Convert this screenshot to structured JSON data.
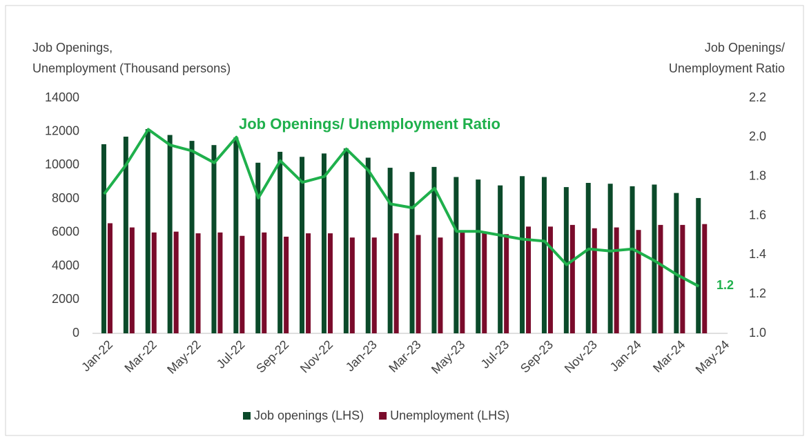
{
  "chart_data": {
    "type": "bar-line",
    "ylabel": [
      "Job Openings,",
      "Unemployment (Thousand persons)"
    ],
    "y2label": [
      "Job Openings/",
      "Unemployment Ratio"
    ],
    "annotations": [
      "Job Openings/ Unemployment Ratio",
      "1.2"
    ],
    "categories": [
      "Jan-22",
      null,
      "Mar-22",
      null,
      "May-22",
      null,
      "Jul-22",
      null,
      "Sep-22",
      null,
      "Nov-22",
      null,
      "Jan-23",
      null,
      "Mar-23",
      null,
      "May-23",
      null,
      "Jul-23",
      null,
      "Sep-23",
      null,
      "Nov-23",
      null,
      "Jan-24",
      null,
      "Mar-24",
      null,
      "May-24"
    ],
    "series": [
      {
        "name": "Job openings (LHS)",
        "color": "#0b4a2a",
        "type": "bar",
        "values": [
          11250,
          11700,
          12150,
          11800,
          11450,
          11200,
          11650,
          10150,
          10800,
          10500,
          10700,
          11000,
          10450,
          9850,
          9600,
          9900,
          9300,
          9150,
          8800,
          9350,
          9300,
          8700,
          8950,
          8900,
          8750,
          8850,
          8350,
          8050,
          null
        ]
      },
      {
        "name": "Unemployment (LHS)",
        "color": "#7a0b2b",
        "type": "bar",
        "values": [
          6550,
          6300,
          6000,
          6050,
          5950,
          6000,
          5800,
          6000,
          5750,
          5950,
          5950,
          5700,
          5700,
          5950,
          5850,
          5700,
          6100,
          6000,
          5900,
          6350,
          6350,
          6450,
          6250,
          6300,
          6150,
          6450,
          6450,
          6500,
          null
        ]
      },
      {
        "color": "#1fb04c",
        "type": "line",
        "axis": "y2",
        "values": [
          1.71,
          1.86,
          2.04,
          1.96,
          1.93,
          1.87,
          2.0,
          1.69,
          1.88,
          1.77,
          1.8,
          1.94,
          1.83,
          1.66,
          1.64,
          1.74,
          1.52,
          1.52,
          1.5,
          1.48,
          1.47,
          1.35,
          1.43,
          1.42,
          1.43,
          1.37,
          1.3,
          1.24,
          null
        ]
      }
    ],
    "ylim": [
      0,
      14000
    ],
    "yticks": [
      0,
      2000,
      4000,
      6000,
      8000,
      10000,
      12000,
      14000
    ],
    "y2lim": [
      1,
      2.2
    ],
    "y2ticks": [
      {
        "value": 1,
        "label": "1.0"
      },
      1.2,
      1.4,
      1.6,
      1.8,
      {
        "value": 2,
        "label": "2.0"
      },
      2.2
    ],
    "legend": "bottom"
  }
}
